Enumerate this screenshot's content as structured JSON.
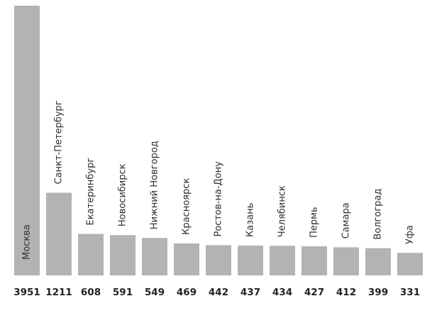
{
  "chart_data": {
    "type": "bar",
    "title": "",
    "xlabel": "",
    "ylabel": "",
    "categories": [
      "Москва",
      "Санкт-Петербург",
      "Екатеринбург",
      "Новосибирск",
      "Нижний Новгород",
      "Красноярск",
      "Ростов-на-Дону",
      "Казань",
      "Челябинск",
      "Пермь",
      "Самара",
      "Волгоград",
      "Уфа"
    ],
    "values": [
      3951,
      1211,
      608,
      591,
      549,
      469,
      442,
      437,
      434,
      427,
      412,
      399,
      331
    ],
    "value_labels": [
      "3951",
      "1211",
      "608",
      "591",
      "549",
      "469",
      "442",
      "437",
      "434",
      "427",
      "412",
      "399",
      "331"
    ],
    "ylim": [
      0,
      3951
    ],
    "grid": false,
    "legend": "none",
    "bar_color": "#b3b3b3",
    "label_color": "#2f2f2f",
    "value_color": "#222222"
  }
}
